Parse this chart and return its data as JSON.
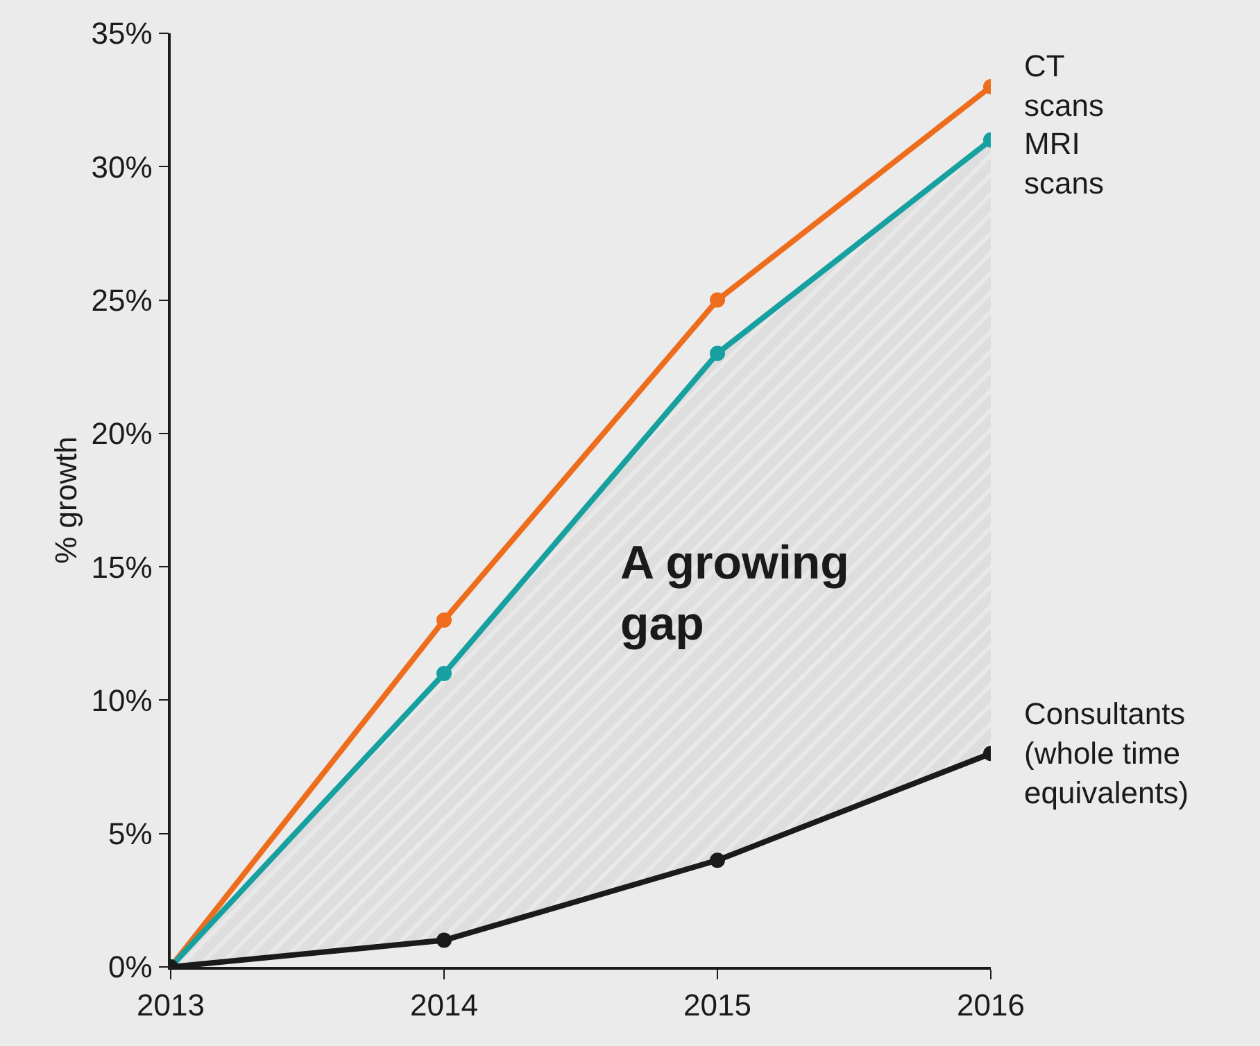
{
  "chart_data": {
    "type": "line",
    "ylabel": "% growth",
    "x": [
      2013,
      2014,
      2015,
      2016
    ],
    "series": [
      {
        "name": "CT\nscans",
        "color": "#ee6d1c",
        "values": [
          0,
          13,
          25,
          33
        ]
      },
      {
        "name": "MRI\nscans",
        "color": "#17a0a0",
        "values": [
          0,
          11,
          23,
          31
        ]
      },
      {
        "name": "Consultants\n(whole time\nequivalents)",
        "color": "#1a1a1a",
        "values": [
          0,
          1,
          4,
          8
        ]
      }
    ],
    "annotations": [
      "A growing\ngap"
    ],
    "xlim": [
      2013,
      2016
    ],
    "xticks": [
      2013,
      2014,
      2015,
      2016
    ],
    "ylim": [
      0,
      35
    ],
    "yticks": [
      {
        "value": 0,
        "label": "0%"
      },
      {
        "value": 5,
        "label": "5%"
      },
      {
        "value": 10,
        "label": "10%"
      },
      {
        "value": 15,
        "label": "15%"
      },
      {
        "value": 20,
        "label": "20%"
      },
      {
        "value": 25,
        "label": "25%"
      },
      {
        "value": 30,
        "label": "30%"
      },
      {
        "value": 35,
        "label": "35%"
      }
    ],
    "grid": false,
    "legend": false,
    "marker": "circle",
    "line_style": "solid"
  }
}
